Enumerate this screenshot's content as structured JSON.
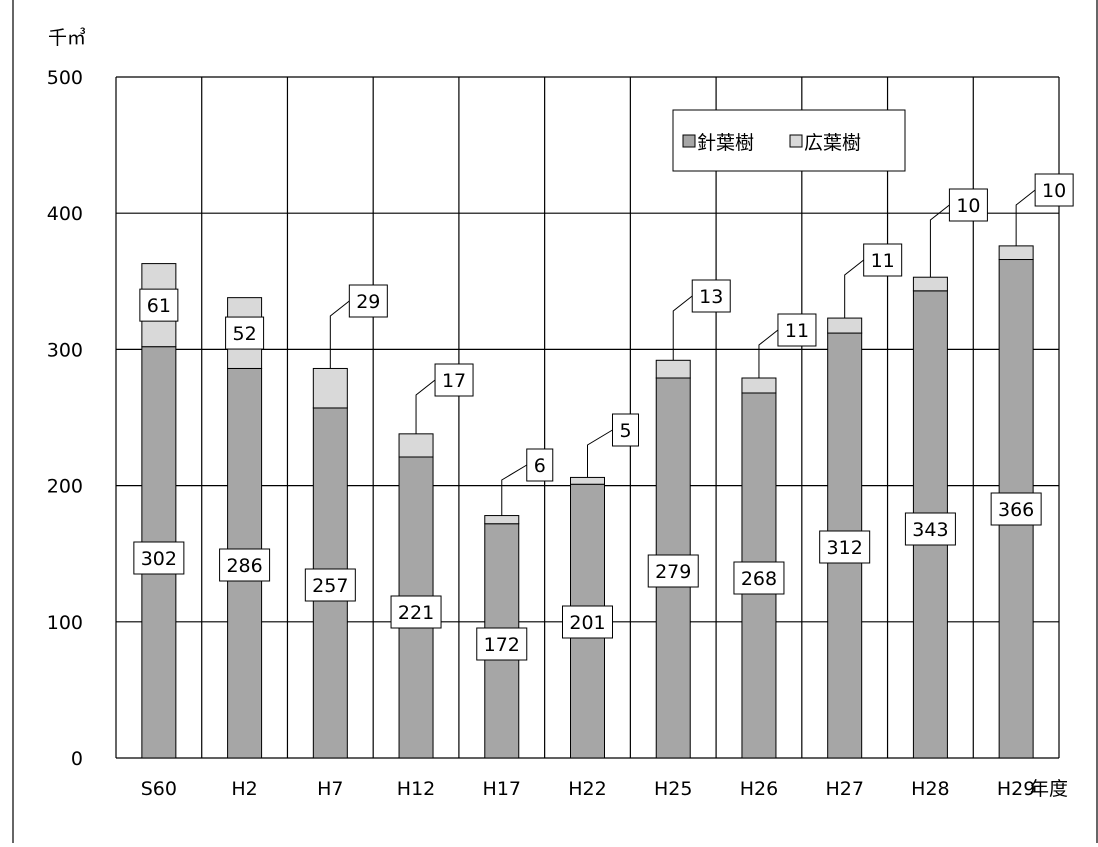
{
  "chart_data": {
    "type": "bar",
    "stacked": true,
    "unit_label": "千㎥",
    "xlabel": "年度",
    "categories": [
      "S60",
      "H2",
      "H7",
      "H12",
      "H17",
      "H22",
      "H25",
      "H26",
      "H27",
      "H28",
      "H29"
    ],
    "series": [
      {
        "name": "針葉樹",
        "values": [
          302,
          286,
          257,
          221,
          172,
          201,
          279,
          268,
          312,
          343,
          366
        ],
        "color": "#a6a6a6"
      },
      {
        "name": "広葉樹",
        "values": [
          61,
          52,
          29,
          17,
          6,
          5,
          13,
          11,
          11,
          10,
          10
        ],
        "color": "#d9d9d9"
      }
    ],
    "yticks": [
      "0",
      "100",
      "200",
      "300",
      "400",
      "500"
    ],
    "ylim": [
      0,
      500
    ],
    "grid": true,
    "legend_position": "top-right"
  }
}
